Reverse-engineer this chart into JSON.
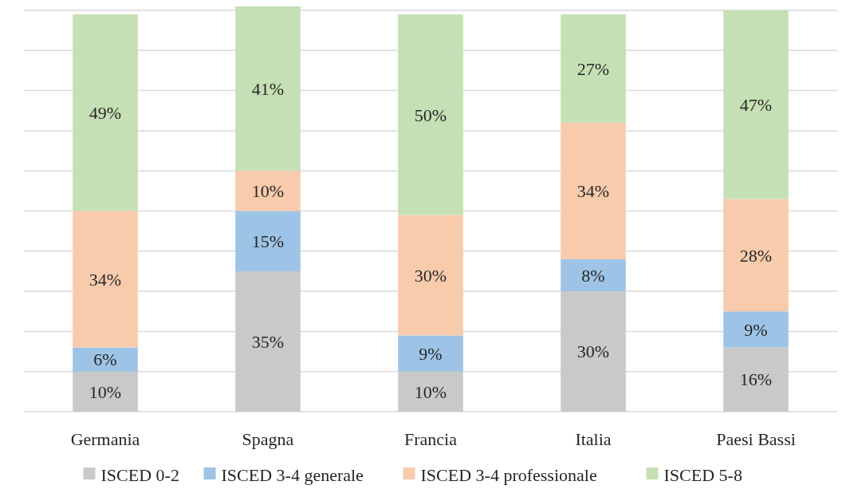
{
  "chart_data": {
    "type": "bar",
    "stacked": true,
    "categories": [
      "Germania",
      "Spagna",
      "Francia",
      "Italia",
      "Paesi Bassi"
    ],
    "series": [
      {
        "name": "ISCED 0-2",
        "color": "#c9c9c9",
        "values": [
          10,
          35,
          10,
          30,
          16
        ],
        "value_labels": [
          "10%",
          "35%",
          "10%",
          "30%",
          "16%"
        ]
      },
      {
        "name": "ISCED 3-4 generale",
        "color": "#9dc3e6",
        "values": [
          6,
          15,
          9,
          8,
          9
        ],
        "value_labels": [
          "6%",
          "15%",
          "9%",
          "8%",
          "9%"
        ]
      },
      {
        "name": "ISCED 3-4 professionale",
        "color": "#f8cbad",
        "values": [
          34,
          10,
          30,
          34,
          28
        ],
        "value_labels": [
          "34%",
          "10%",
          "30%",
          "34%",
          "28%"
        ]
      },
      {
        "name": "ISCED 5-8",
        "color": "#c5e0b4",
        "values": [
          49,
          41,
          50,
          27,
          47
        ],
        "value_labels": [
          "49%",
          "41%",
          "50%",
          "27%",
          "47%"
        ]
      }
    ],
    "tick_labels": "x",
    "grid": "y",
    "legend": "bottom"
  }
}
